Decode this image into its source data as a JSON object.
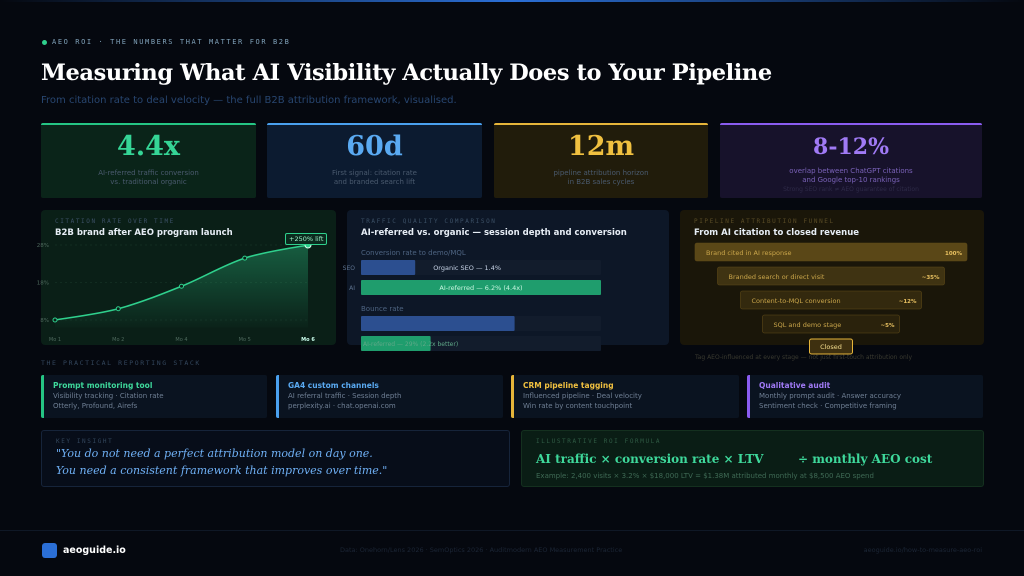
{
  "header": {
    "eyebrow": "AEO ROI · THE NUMBERS THAT MATTER FOR B2B",
    "title": "Measuring What AI Visibility Actually Does to Your Pipeline",
    "subtitle": "From citation rate to deal velocity — the full B2B attribution framework, visualised."
  },
  "stats": [
    {
      "value": "4.4x",
      "line1": "AI-referred traffic conversion",
      "line2": "vs. traditional organic"
    },
    {
      "value": "60d",
      "line1": "First signal: citation rate",
      "line2": "and branded search lift"
    },
    {
      "value": "12m",
      "line1": "pipeline attribution horizon",
      "line2": "in B2B sales cycles"
    },
    {
      "value": "8-12%",
      "line1": "overlap between ChatGPT citations",
      "line2": "and Google top-10 rankings",
      "note": "Strong SEO rank ≠ AEO guarantee of citation"
    }
  ],
  "citation_chart": {
    "type": "line",
    "label": "CITATION RATE OVER TIME",
    "title": "B2B brand after AEO program launch",
    "callout": "+250% lift",
    "categories": [
      "Mo 1",
      "Mo 2",
      "Mo 4",
      "Mo 5",
      "Mo 6"
    ],
    "values": [
      8,
      11,
      17,
      24.5,
      28
    ],
    "ylim": [
      6,
      30
    ],
    "yticks": [
      {
        "value": 28,
        "label": "28%"
      },
      {
        "value": 18,
        "label": "18%"
      },
      {
        "value": 8,
        "label": "8%"
      }
    ],
    "color": "#2fd08d",
    "grid": true
  },
  "traffic_chart": {
    "type": "bar",
    "label": "TRAFFIC QUALITY COMPARISON",
    "title": "AI-referred vs. organic — session depth and conversion",
    "groups": [
      {
        "title": "Conversion rate to demo/MQL",
        "xlim": [
          0,
          6.2
        ],
        "categories": [
          "SEO",
          "AI"
        ],
        "values": [
          1.4,
          6.2
        ],
        "value_labels": [
          "Organic SEO — 1.4%",
          "AI-referred — 6.2% (4.4x)"
        ],
        "colors": [
          "#2c4f90",
          "#1f9d6d"
        ]
      },
      {
        "title": "Bounce rate",
        "xlim": [
          0,
          100
        ],
        "values": [
          64,
          29
        ],
        "value_labels": [
          null,
          "AI-referred — 29% (2.2x better)"
        ],
        "colors": [
          "#2c4f90",
          "#1f9d6d"
        ]
      }
    ]
  },
  "funnel": {
    "label": "PIPELINE ATTRIBUTION FUNNEL",
    "title": "From AI citation to closed revenue",
    "stages": [
      {
        "label": "Brand cited in AI response",
        "value": "100%"
      },
      {
        "label": "Branded search or direct visit",
        "value": "~35%"
      },
      {
        "label": "Content-to-MQL conversion",
        "value": "~12%"
      },
      {
        "label": "SQL and demo stage",
        "value": "~5%"
      },
      {
        "label": "Closed"
      }
    ],
    "note": "Tag AEO-influenced at every stage — not just first-touch attribution only"
  },
  "stack": {
    "label": "THE PRACTICAL REPORTING STACK",
    "items": [
      {
        "title": "Prompt monitoring tool",
        "line1": "Visibility tracking · Citation rate",
        "line2": "Otterly, Profound, Airefs"
      },
      {
        "title": "GA4 custom channels",
        "line1": "AI referral traffic · Session depth",
        "line2": "perplexity.ai · chat.openai.com"
      },
      {
        "title": "CRM pipeline tagging",
        "line1": "Influenced pipeline · Deal velocity",
        "line2": "Win rate by content touchpoint"
      },
      {
        "title": "Qualitative audit",
        "line1": "Monthly prompt audit · Answer accuracy",
        "line2": "Sentiment check · Competitive framing"
      }
    ]
  },
  "insight": {
    "label": "KEY INSIGHT",
    "quote": [
      "\"You do not need a perfect attribution model on day one.",
      "You need a consistent framework that improves over time.\""
    ]
  },
  "formula": {
    "label": "ILLUSTRATIVE ROI FORMULA",
    "left": "AI traffic × conversion rate × LTV",
    "right": "÷ monthly AEO cost",
    "example": "Example: 2,400 visits × 3.2% × $18,000 LTV = $1.38M attributed monthly at $8,500 AEO spend"
  },
  "footer": {
    "brand": "aeoguide.io",
    "sources": "Data: Onehorn/Lens 2026 · SemOptics 2026 · Auditmodern AEO Measurement Practice",
    "url": "aeoguide.io/how-to-measure-aeo-roi"
  }
}
